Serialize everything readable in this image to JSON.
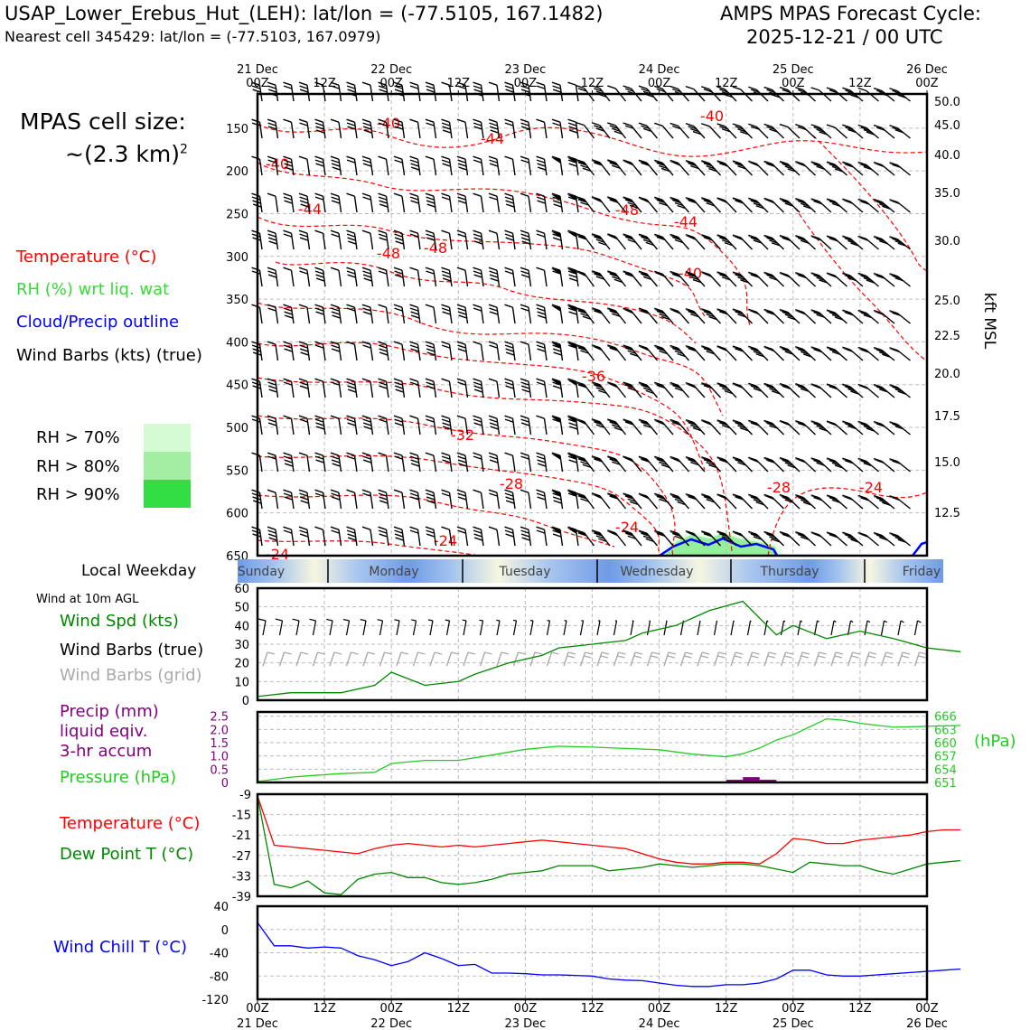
{
  "header": {
    "title_left": "USAP_Lower_Erebus_Hut_(LEH): lat/lon = (-77.5105, 167.1482)",
    "subtitle_left": "Nearest cell 345429: lat/lon = (-77.5103, 167.0979)",
    "title_right_1": "AMPS MPAS Forecast Cycle:",
    "title_right_2": "2025-12-21 / 00 UTC"
  },
  "sidebar": {
    "cell_size_label": "MPAS cell size:",
    "cell_size_value": "~(2.3 km)",
    "cell_size_exp": "2",
    "legend_temperature": "Temperature (°C)",
    "legend_rh": "RH (%) wrt liq. wat",
    "legend_cloud": "Cloud/Precip outline",
    "legend_barbs": "Wind Barbs (kts) (true)",
    "rh_legend": [
      {
        "label": "RH > 70%",
        "color": "#d4fbd4"
      },
      {
        "label": "RH > 80%",
        "color": "#a3eea3"
      },
      {
        "label": "RH > 90%",
        "color": "#33dd44"
      }
    ],
    "local_weekday": "Local Weekday",
    "wind_at_10m": "Wind at 10m AGL",
    "wind_speed_label": "Wind Spd (kts)",
    "wind_barbs_true": "Wind Barbs (true)",
    "wind_barbs_grid": "Wind Barbs (grid)",
    "precip_1": "Precip (mm)",
    "precip_2": "liquid eqiv.",
    "precip_3": "3-hr accum",
    "pressure_label": "Pressure (hPa)",
    "temperature_label": "Temperature (°C)",
    "dewpoint_label": "Dew Point T (°C)",
    "windchill_label": "Wind Chill T (°C)"
  },
  "colors": {
    "temperature": "#ff0000",
    "rh": "#33dd33",
    "cloud": "#0000ff",
    "wind_speed": "#008800",
    "pressure": "#22cc22",
    "precip": "#800080",
    "dewpoint": "#008800",
    "windchill": "#0000ff",
    "grid_barbs": "#aaaaaa"
  },
  "chart_data": [
    {
      "type": "line",
      "name": "time-height cross section",
      "top_ticks": [
        {
          "time": "00Z",
          "date": "21 Dec"
        },
        {
          "time": "12Z",
          "date": ""
        },
        {
          "time": "00Z",
          "date": "22 Dec"
        },
        {
          "time": "12Z",
          "date": ""
        },
        {
          "time": "00Z",
          "date": "23 Dec"
        },
        {
          "time": "12Z",
          "date": ""
        },
        {
          "time": "00Z",
          "date": "24 Dec"
        },
        {
          "time": "12Z",
          "date": ""
        },
        {
          "time": "00Z",
          "date": "25 Dec"
        },
        {
          "time": "12Z",
          "date": ""
        },
        {
          "time": "00Z",
          "date": "26 Dec"
        }
      ],
      "ylabel_left": "",
      "yticks_left_hpa": [
        150,
        200,
        250,
        300,
        350,
        400,
        450,
        500,
        550,
        600,
        650
      ],
      "ylabel_right": "kft MSL",
      "yticks_right_kft": [
        "50.0",
        "45.0",
        "40.0",
        "35.0",
        "30.0",
        "25.0",
        "22.5",
        "20.0",
        "17.5",
        "15.0",
        "12.5"
      ],
      "temperature_labels": [
        "-40",
        "-44",
        "-40",
        "-40",
        "-44",
        "-48",
        "-48",
        "-48",
        "-44",
        "-40",
        "-36",
        "-32",
        "-28",
        "-24",
        "-24",
        "-24",
        "-28",
        "-24"
      ]
    },
    {
      "type": "bar",
      "name": "local weekday strip",
      "days": [
        "Sunday",
        "Monday",
        "Tuesday",
        "Wednesday",
        "Thursday",
        "Friday"
      ]
    },
    {
      "type": "line",
      "name": "wind speed",
      "ylim": [
        0,
        60
      ],
      "yticks": [
        0,
        10,
        20,
        30,
        40,
        50,
        60
      ],
      "x_hours": [
        0,
        6,
        9,
        15,
        21,
        24,
        30,
        36,
        39,
        45,
        51,
        54,
        57,
        63,
        66,
        69,
        75,
        81,
        87,
        93,
        96,
        102,
        108,
        114,
        120,
        126
      ],
      "values": [
        2,
        4,
        4,
        4,
        8,
        15,
        8,
        10,
        14,
        20,
        24,
        28,
        29,
        31,
        32,
        36,
        40,
        48,
        53,
        35,
        40,
        33,
        37,
        33,
        28,
        26
      ]
    },
    {
      "type": "line",
      "name": "precip and pressure",
      "ylim_left": [
        0,
        2.5
      ],
      "yticks_left": [
        "0",
        "0.5",
        "1.0",
        "1.5",
        "2.0",
        "2.5"
      ],
      "yticks_right": [
        "651",
        "654",
        "657",
        "660",
        "663",
        "666"
      ],
      "ylabel_right": "(hPa)",
      "pressure_x_hours": [
        0,
        6,
        9,
        15,
        21,
        24,
        30,
        36,
        42,
        48,
        54,
        60,
        66,
        72,
        78,
        84,
        87,
        90,
        93,
        96,
        102,
        105,
        108,
        114,
        120,
        126
      ],
      "pressure_values": [
        651.2,
        652.2,
        652.5,
        653.0,
        653.3,
        655.3,
        656.0,
        656.0,
        657.2,
        658.5,
        659.2,
        659.0,
        658.7,
        658.4,
        657.4,
        656.8,
        657.5,
        658.8,
        660.6,
        661.8,
        665.4,
        665.1,
        664.4,
        663.5,
        663.7,
        663.9
      ],
      "precip_bars": [
        {
          "start_hour": 84,
          "end_hour": 87,
          "value": 0.1
        },
        {
          "start_hour": 87,
          "end_hour": 90,
          "value": 0.2
        },
        {
          "start_hour": 90,
          "end_hour": 93,
          "value": 0.1
        }
      ]
    },
    {
      "type": "line",
      "name": "temperature and dew point",
      "ylim": [
        -39,
        -9
      ],
      "yticks": [
        -9,
        -15,
        -21,
        -27,
        -33,
        -39
      ],
      "x_hours": [
        0,
        3,
        6,
        9,
        12,
        15,
        18,
        21,
        24,
        27,
        30,
        33,
        36,
        39,
        42,
        45,
        48,
        51,
        54,
        57,
        60,
        63,
        66,
        69,
        72,
        75,
        78,
        81,
        84,
        87,
        90,
        93,
        96,
        99,
        102,
        105,
        108,
        111,
        114,
        117,
        120,
        123,
        126
      ],
      "temperature": [
        -9.5,
        -24.0,
        -24.5,
        -25.0,
        -25.5,
        -26.0,
        -26.5,
        -25.0,
        -24.0,
        -23.5,
        -24.0,
        -24.5,
        -24.0,
        -24.5,
        -24.0,
        -23.5,
        -23.0,
        -22.5,
        -23.0,
        -23.5,
        -24.0,
        -24.5,
        -25.0,
        -26.5,
        -28.0,
        -29.0,
        -29.5,
        -29.5,
        -29.0,
        -29.0,
        -29.5,
        -26.5,
        -22.0,
        -22.5,
        -23.5,
        -23.5,
        -22.5,
        -22.0,
        -21.5,
        -21.0,
        -20.0,
        -19.5,
        -19.5
      ],
      "dewpoint": [
        -9.5,
        -35.5,
        -36.5,
        -34.5,
        -38.0,
        -38.5,
        -34.0,
        -32.5,
        -32.0,
        -33.5,
        -33.5,
        -35.0,
        -35.5,
        -35.0,
        -34.0,
        -32.5,
        -32.0,
        -31.5,
        -30.0,
        -30.0,
        -30.0,
        -31.5,
        -31.0,
        -30.5,
        -29.5,
        -30.0,
        -30.5,
        -30.0,
        -29.5,
        -29.5,
        -30.0,
        -31.0,
        -32.0,
        -29.0,
        -29.5,
        -30.0,
        -30.0,
        -31.5,
        -32.5,
        -31.0,
        -29.5,
        -29.0,
        -28.5
      ]
    },
    {
      "type": "line",
      "name": "wind chill",
      "ylim": [
        -120,
        40
      ],
      "yticks": [
        40,
        0,
        -40,
        -80,
        -120
      ],
      "x_hours": [
        0,
        3,
        6,
        9,
        12,
        15,
        18,
        21,
        24,
        27,
        30,
        33,
        36,
        39,
        42,
        45,
        48,
        51,
        54,
        57,
        60,
        63,
        66,
        69,
        72,
        75,
        78,
        81,
        84,
        87,
        90,
        93,
        96,
        99,
        102,
        105,
        108,
        111,
        114,
        117,
        120,
        123,
        126
      ],
      "values": [
        12,
        -28,
        -28,
        -32,
        -30,
        -32,
        -45,
        -52,
        -62,
        -55,
        -40,
        -50,
        -62,
        -60,
        -75,
        -75,
        -76,
        -78,
        -78,
        -79,
        -80,
        -85,
        -87,
        -88,
        -92,
        -96,
        -98,
        -98,
        -95,
        -95,
        -92,
        -85,
        -70,
        -70,
        -78,
        -80,
        -80,
        -78,
        -76,
        -74,
        -72,
        -70,
        -68
      ],
      "bottom_ticks": [
        {
          "time": "00Z",
          "date": "21 Dec"
        },
        {
          "time": "12Z",
          "date": ""
        },
        {
          "time": "00Z",
          "date": "22 Dec"
        },
        {
          "time": "12Z",
          "date": ""
        },
        {
          "time": "00Z",
          "date": "23 Dec"
        },
        {
          "time": "12Z",
          "date": ""
        },
        {
          "time": "00Z",
          "date": "24 Dec"
        },
        {
          "time": "12Z",
          "date": ""
        },
        {
          "time": "00Z",
          "date": "25 Dec"
        },
        {
          "time": "12Z",
          "date": ""
        },
        {
          "time": "00Z",
          "date": "26 Dec"
        }
      ]
    }
  ]
}
